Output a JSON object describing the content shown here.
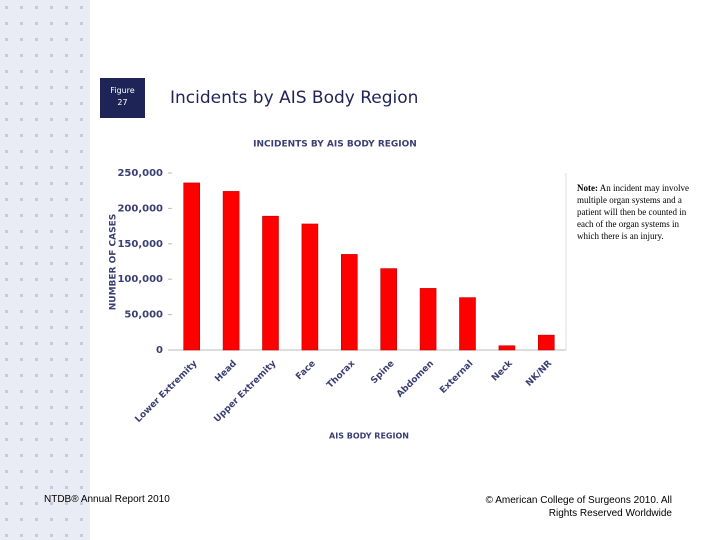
{
  "figure": {
    "label": "Figure",
    "number": "27"
  },
  "slide_title": "Incidents by AIS Body Region",
  "note": {
    "label": "Note:",
    "text": "An incident may involve multiple organ systems and a patient will then be counted in each of the organ systems in which there is an injury."
  },
  "footer": {
    "left": "NTDB® Annual Report 2010",
    "right": "© American College of Surgeons 2010.  All Rights Reserved Worldwide"
  },
  "chart_data": {
    "type": "bar",
    "title": "INCIDENTS BY AIS BODY REGION",
    "x_label": "AIS BODY REGION",
    "y_label": "NUMBER OF CASES",
    "categories": [
      "Lower Extremity",
      "Head",
      "Upper Extremity",
      "Face",
      "Thorax",
      "Spine",
      "Abdomen",
      "External",
      "Neck",
      "NK/NR"
    ],
    "values": [
      236000,
      224000,
      189000,
      178000,
      135000,
      115000,
      87000,
      74000,
      6000,
      21000
    ],
    "color": "#ff0000",
    "ylim": [
      0,
      250000
    ],
    "yticks": [
      0,
      {
        "value": 50000,
        "label": "50,000"
      },
      {
        "value": 100000,
        "label": "100,000"
      },
      {
        "value": 150000,
        "label": "150,000"
      },
      {
        "value": 200000,
        "label": "200,000"
      },
      {
        "value": 250000,
        "label": "250,000"
      }
    ],
    "grid": false
  }
}
